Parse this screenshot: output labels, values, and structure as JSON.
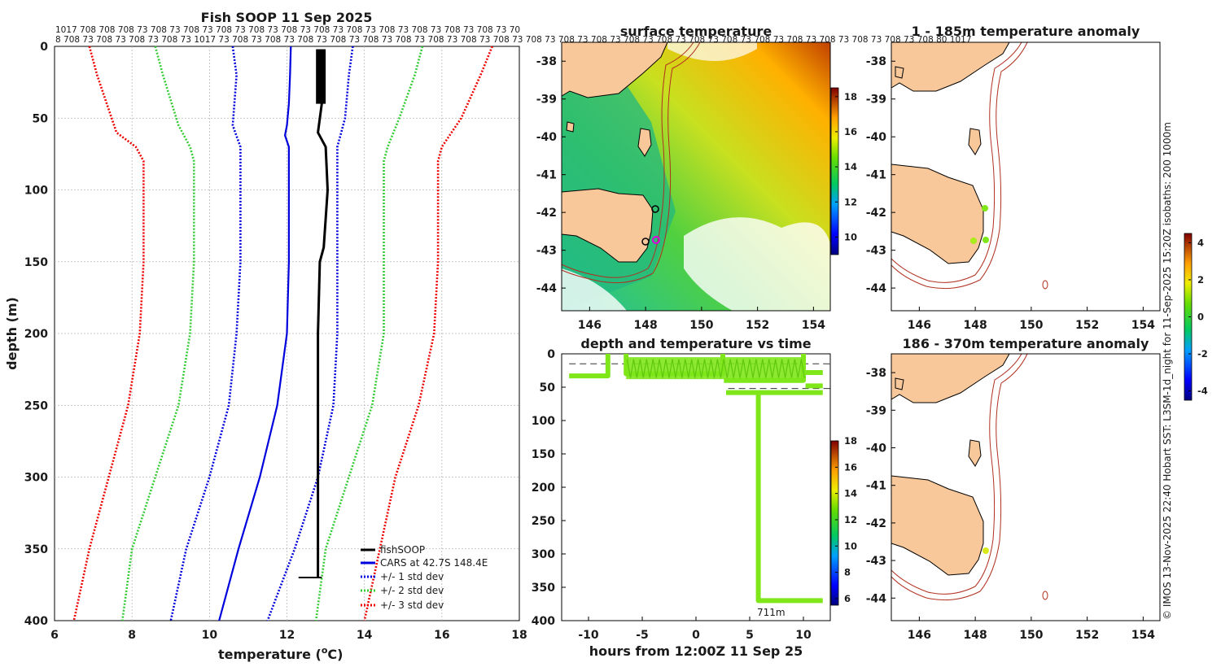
{
  "colors": {
    "fishsoop": "#000000",
    "cars": "#0000dd",
    "std1": "#0000dd",
    "std2": "#33cc33",
    "std3": "#ee0000",
    "land": "#f8c89a",
    "isobath": "#b03020",
    "grid": "#b8b8b8",
    "swath": "#7fe61a"
  },
  "chart_data": [
    {
      "type": "line",
      "title": "Fish SOOP 11 Sep 2025",
      "top_labels_row1": "1017 708 708 708 73 708 73 708 73 708 73 708 73 708 73 708 73 708 73 708 73 708 73 708 73 708 73 70",
      "top_labels_row2": "8 708 73 708 73 708 73 708 73 1017 73 708 73 708 73 708 73 708 73 708 73 708 73 708 73 708 73 708 73 708 73 708 73 708 73 708 73 708 73 708 73 708 73 708 73 708 73 708 73 708 73 708 73 708 80 1017",
      "xlabel": "temperature (",
      "xlabel_sup": "o",
      "xlabel_tail": "C)",
      "ylabel": "depth (m)",
      "xlim": [
        6,
        18
      ],
      "ylim": [
        0,
        400
      ],
      "xticks": [
        "6",
        "8",
        "10",
        "12",
        "14",
        "16",
        "18"
      ],
      "yticks": [
        "0",
        "50",
        "100",
        "150",
        "200",
        "250",
        "300",
        "350",
        "400"
      ],
      "legend": [
        "fishSOOP",
        "CARS at 42.7S 148.4E",
        "+/- 1 std dev",
        "+/- 2 std dev",
        "+/- 3 std dev"
      ],
      "series": [
        {
          "name": "CARS",
          "depth": [
            0,
            20,
            40,
            55,
            62,
            70,
            100,
            150,
            200,
            250,
            300,
            350,
            400
          ],
          "temp": [
            12.1,
            12.08,
            12.05,
            12.0,
            11.95,
            12.05,
            12.05,
            12.05,
            12.0,
            11.75,
            11.3,
            10.75,
            10.25
          ]
        },
        {
          "name": "+1 std",
          "depth": [
            0,
            20,
            50,
            70,
            80,
            100,
            150,
            200,
            250,
            300,
            350,
            400
          ],
          "temp": [
            13.7,
            13.6,
            13.5,
            13.3,
            13.3,
            13.3,
            13.3,
            13.3,
            13.2,
            12.8,
            12.2,
            11.5
          ]
        },
        {
          "name": "-1 std",
          "depth": [
            0,
            20,
            55,
            70,
            80,
            100,
            150,
            200,
            250,
            300,
            350,
            400
          ],
          "temp": [
            10.6,
            10.7,
            10.6,
            10.8,
            10.8,
            10.8,
            10.8,
            10.7,
            10.5,
            10.0,
            9.4,
            9.0
          ]
        },
        {
          "name": "+2 std",
          "depth": [
            0,
            20,
            50,
            70,
            80,
            100,
            150,
            200,
            250,
            300,
            350,
            400
          ],
          "temp": [
            15.5,
            15.3,
            14.9,
            14.6,
            14.5,
            14.5,
            14.5,
            14.5,
            14.2,
            13.6,
            13.0,
            12.75
          ]
        },
        {
          "name": "-2 std",
          "depth": [
            0,
            20,
            55,
            70,
            80,
            100,
            150,
            200,
            250,
            300,
            350,
            400
          ],
          "temp": [
            8.6,
            8.8,
            9.2,
            9.5,
            9.6,
            9.6,
            9.6,
            9.5,
            9.2,
            8.6,
            8.0,
            7.75
          ]
        },
        {
          "name": "+3 std",
          "depth": [
            0,
            20,
            50,
            70,
            80,
            100,
            150,
            200,
            250,
            300,
            350,
            400
          ],
          "temp": [
            17.3,
            17.0,
            16.5,
            16.0,
            15.9,
            15.9,
            15.9,
            15.8,
            15.4,
            14.8,
            14.4,
            14.0
          ]
        },
        {
          "name": "-3 std",
          "depth": [
            0,
            20,
            60,
            70,
            80,
            100,
            150,
            200,
            250,
            300,
            350,
            400
          ],
          "temp": [
            6.9,
            7.1,
            7.6,
            8.1,
            8.3,
            8.3,
            8.3,
            8.2,
            7.9,
            7.4,
            6.9,
            6.5
          ]
        },
        {
          "name": "fishSOOP",
          "depth": [
            3,
            20,
            40,
            60,
            70,
            100,
            140,
            150,
            200,
            250,
            300,
            350,
            370
          ],
          "temp": [
            12.9,
            12.95,
            12.9,
            12.8,
            13.0,
            13.05,
            12.95,
            12.85,
            12.8,
            12.8,
            12.8,
            12.8,
            12.8
          ]
        }
      ]
    },
    {
      "type": "heatmap",
      "title": "surface temperature",
      "xticks": [
        "146",
        "148",
        "150",
        "152",
        "154"
      ],
      "yticks": [
        "-38",
        "-39",
        "-40",
        "-41",
        "-42",
        "-43",
        "-44"
      ],
      "colorbar_ticks": [
        "18",
        "16",
        "14",
        "12",
        "10"
      ],
      "colorbar_range": [
        9,
        18.5
      ]
    },
    {
      "type": "scatter",
      "title": "depth and temperature vs time",
      "xlabel": "hours from 12:00Z 11 Sep 25",
      "xlim": [
        -12.5,
        12.5
      ],
      "ylim": [
        0,
        400
      ],
      "xticks": [
        "-10",
        "-5",
        "0",
        "5",
        "10"
      ],
      "yticks": [
        "0",
        "50",
        "100",
        "150",
        "200",
        "250",
        "300",
        "350",
        "400"
      ],
      "colorbar_ticks": [
        "18",
        "16",
        "14",
        "12",
        "10",
        "8",
        "6"
      ],
      "colorbar_range": [
        5.5,
        18
      ],
      "annotation": "711m",
      "dashed_depths": [
        15,
        52
      ]
    },
    {
      "type": "scatter",
      "title": "1 - 185m temperature anomaly",
      "xticks": [
        "146",
        "148",
        "150",
        "152",
        "154"
      ],
      "yticks": [
        "-38",
        "-39",
        "-40",
        "-41",
        "-42",
        "-43",
        "-44"
      ],
      "colorbar_ticks": [
        "4",
        "2",
        "0",
        "-2",
        "-4"
      ],
      "colorbar_range": [
        -4.5,
        4.5
      ]
    },
    {
      "type": "scatter",
      "title": "186 - 370m temperature anomaly",
      "xticks": [
        "146",
        "148",
        "150",
        "152",
        "154"
      ],
      "yticks": [
        "-38",
        "-39",
        "-40",
        "-41",
        "-42",
        "-43",
        "-44"
      ]
    }
  ],
  "side_caption": "© IMOS 13-Nov-2025 22:40 Hobart SST: L3SM-1d_night for 11-Sep-2025 15:20Z isobaths: 200  1000m"
}
